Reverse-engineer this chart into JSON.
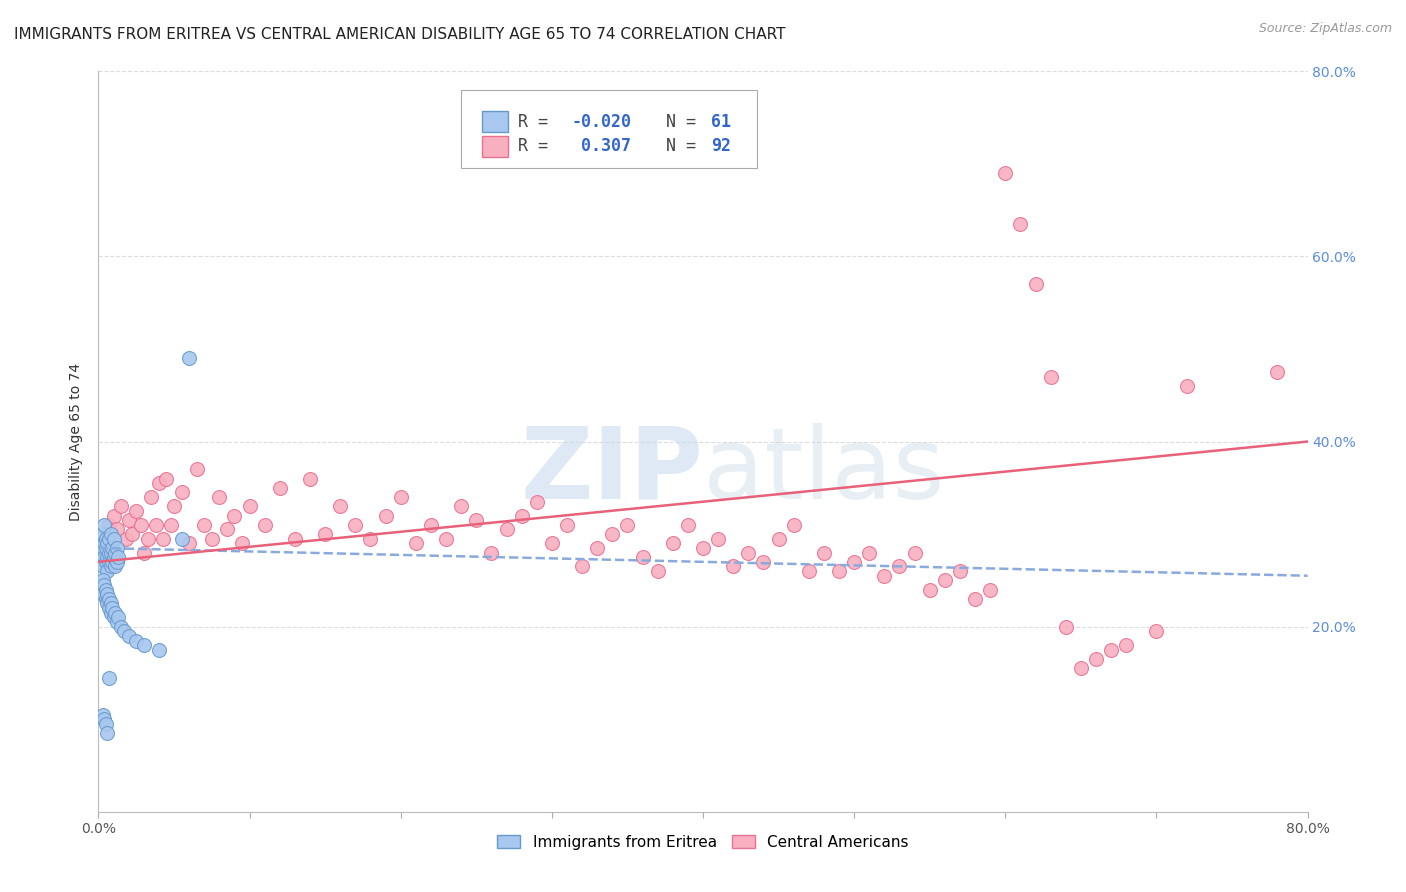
{
  "title": "IMMIGRANTS FROM ERITREA VS CENTRAL AMERICAN DISABILITY AGE 65 TO 74 CORRELATION CHART",
  "source": "Source: ZipAtlas.com",
  "ylabel": "Disability Age 65 to 74",
  "xlim": [
    0.0,
    0.8
  ],
  "ylim": [
    0.0,
    0.8
  ],
  "eritrea_color": "#A8C8F0",
  "eritrea_edge": "#6699CC",
  "central_color": "#F8B0C0",
  "central_edge": "#E87090",
  "trendline_eritrea_color": "#88AADD",
  "trendline_central_color": "#E8607A",
  "grid_color": "#DDDDDD",
  "watermark_zip": "ZIP",
  "watermark_atlas": "atlas",
  "legend_eritrea_R": "-0.020",
  "legend_eritrea_N": "61",
  "legend_central_R": "0.307",
  "legend_central_N": "92",
  "background_color": "#FFFFFF",
  "title_fontsize": 11,
  "axis_label_fontsize": 10,
  "tick_fontsize": 10,
  "legend_fontsize": 12,
  "source_fontsize": 9,
  "right_tick_color": "#5B8DD9"
}
